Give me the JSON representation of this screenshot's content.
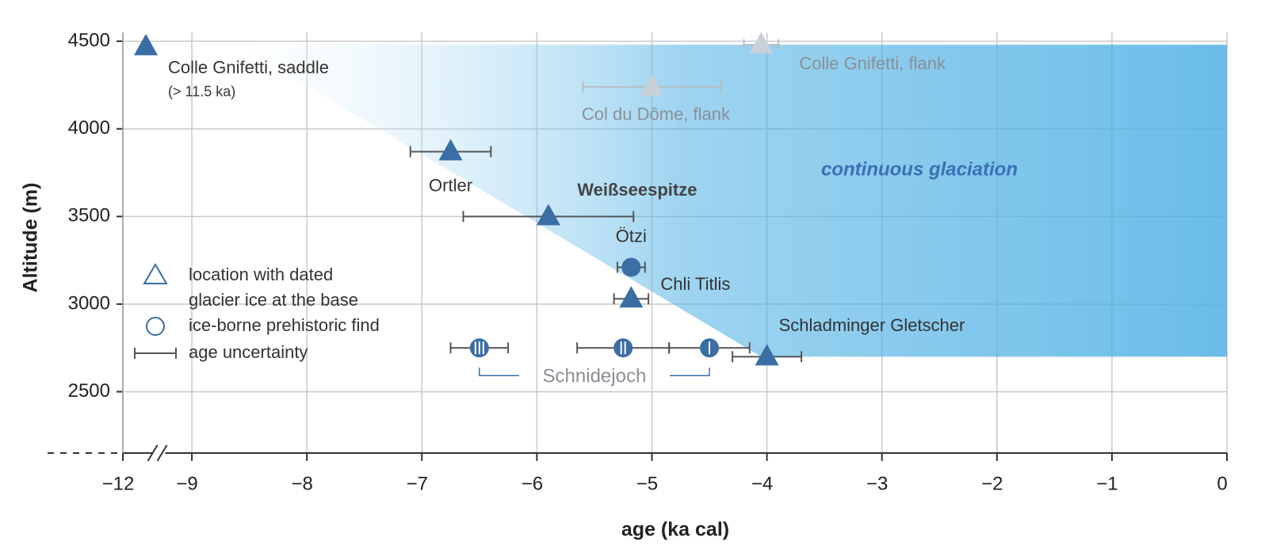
{
  "chart_data": {
    "type": "scatter",
    "xlabel": "age (ka cal)",
    "ylabel": "Altitude  (m)",
    "xlim": [
      -12,
      0
    ],
    "xbreak": [
      -11.7,
      -9.3
    ],
    "ylim": [
      2150,
      4550
    ],
    "xticks": [
      {
        "value": -12,
        "label": "−12"
      },
      {
        "value": -9,
        "label": "−9"
      },
      {
        "value": -8,
        "label": "−8"
      },
      {
        "value": -7,
        "label": "−7"
      },
      {
        "value": -6,
        "label": "−6"
      },
      {
        "value": -5,
        "label": "−5"
      },
      {
        "value": -4,
        "label": "−4"
      },
      {
        "value": -3,
        "label": "−3"
      },
      {
        "value": -2,
        "label": "−2"
      },
      {
        "value": -1,
        "label": "−1"
      },
      0
    ],
    "yticks": [
      2500,
      3000,
      3500,
      4000,
      4500
    ],
    "grid": true,
    "region": {
      "label": "continuous glaciation",
      "color": "#4fb1e4",
      "x": [
        -8.6,
        0,
        0,
        -4.05
      ],
      "y": [
        4480,
        4480,
        2700,
        2700
      ]
    },
    "points": [
      {
        "label": "Colle Gnifetti, saddle",
        "note": "(> 11.5 ka)",
        "x": -11.8,
        "y": 4470,
        "xerr": null,
        "marker": "triangle",
        "color": "#3a6ea5"
      },
      {
        "label": "Colle Gnifetti, flank",
        "x": -4.05,
        "y": 4480,
        "xerr": 0.15,
        "marker": "triangle",
        "color": "#c9d0da"
      },
      {
        "label": "Col du Dôme, flank",
        "x": -5.0,
        "y": 4240,
        "xerr": 0.6,
        "marker": "triangle",
        "color": "#c9d0da"
      },
      {
        "label": "Ortler",
        "x": -6.75,
        "y": 3870,
        "xerr": 0.35,
        "marker": "triangle",
        "color": "#3a6ea5"
      },
      {
        "label": "Weißseespitze",
        "x": -5.9,
        "y": 3500,
        "xerr": 0.74,
        "marker": "triangle",
        "color": "#3a6ea5"
      },
      {
        "label": "Ötzi",
        "x": -5.18,
        "y": 3210,
        "xerr": 0.12,
        "marker": "circle",
        "color": "#3a6ea5"
      },
      {
        "label": "Chli Titlis",
        "x": -5.18,
        "y": 3030,
        "xerr": 0.15,
        "marker": "triangle",
        "color": "#3a6ea5"
      },
      {
        "label": "Schladminger Gletscher",
        "x": -4.0,
        "y": 2700,
        "xerr": 0.3,
        "marker": "triangle",
        "color": "#3a6ea5"
      },
      {
        "x": -6.5,
        "y": 2750,
        "xerr": 0.25,
        "marker": "circle",
        "color": "#3a6ea5",
        "stripes": 3
      },
      {
        "x": -5.25,
        "y": 2750,
        "xerr": 0.4,
        "marker": "circle",
        "color": "#3a6ea5",
        "stripes": 2
      },
      {
        "x": -4.5,
        "y": 2750,
        "xerr": 0.35,
        "marker": "circle",
        "color": "#3a6ea5",
        "stripes": 1
      }
    ],
    "group_label": "Schnidejoch",
    "legend": {
      "triangle": [
        "location with dated",
        "glacier ice at the base"
      ],
      "circle": "ice-borne prehistoric find",
      "errorbar": "age uncertainty"
    }
  }
}
